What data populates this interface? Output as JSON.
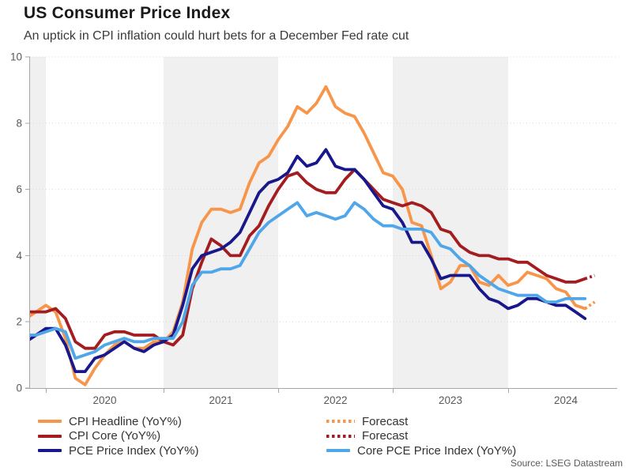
{
  "chart_data": {
    "type": "line",
    "title": "US Consumer Price Index",
    "subtitle": "An uptick in CPI inflation could hurt bets for a December Fed rate cut",
    "source": "Source: LSEG Datastream",
    "unit": "YoY %",
    "frequency": "monthly",
    "x_start_month": "2019-10",
    "x_end_month": "2024-09",
    "forecast_month": "2024-10",
    "x_tick_year_labels": [
      "2020",
      "2021",
      "2022",
      "2023",
      "2024"
    ],
    "y_ticks": [
      0,
      2,
      4,
      6,
      8,
      10
    ],
    "y_range": [
      0,
      10
    ],
    "grid": "horizontal-dotted",
    "legend_position": "bottom",
    "shaded_year_bands": [
      2019,
      2021,
      2023
    ],
    "series": [
      {
        "key": "cpi_headline",
        "name": "CPI Headline (YoY%)",
        "color": "#F7954A",
        "style": "solid",
        "values": [
          1.8,
          2.1,
          2.3,
          2.5,
          2.3,
          1.5,
          0.3,
          0.1,
          0.6,
          1.0,
          1.3,
          1.4,
          1.2,
          1.2,
          1.4,
          1.4,
          1.7,
          2.6,
          4.2,
          5.0,
          5.4,
          5.4,
          5.3,
          5.4,
          6.2,
          6.8,
          7.0,
          7.5,
          7.9,
          8.5,
          8.3,
          8.6,
          9.1,
          8.5,
          8.3,
          8.2,
          7.7,
          7.1,
          6.5,
          6.4,
          6.0,
          5.0,
          4.9,
          4.0,
          3.0,
          3.2,
          3.7,
          3.7,
          3.2,
          3.1,
          3.4,
          3.1,
          3.2,
          3.5,
          3.4,
          3.3,
          3.0,
          2.9,
          2.5,
          2.4
        ],
        "forecast_value": 2.6,
        "forecast_label": "Forecast"
      },
      {
        "key": "cpi_core",
        "name": "CPI Core (YoY%)",
        "color": "#A31D20",
        "style": "solid",
        "values": [
          2.3,
          2.3,
          2.3,
          2.3,
          2.4,
          2.1,
          1.4,
          1.2,
          1.2,
          1.6,
          1.7,
          1.7,
          1.6,
          1.6,
          1.6,
          1.4,
          1.3,
          1.6,
          3.0,
          3.8,
          4.5,
          4.3,
          4.0,
          4.0,
          4.6,
          4.9,
          5.5,
          6.0,
          6.4,
          6.5,
          6.2,
          6.0,
          5.9,
          5.9,
          6.3,
          6.6,
          6.3,
          6.0,
          5.7,
          5.6,
          5.5,
          5.6,
          5.5,
          5.3,
          4.8,
          4.7,
          4.3,
          4.1,
          4.0,
          4.0,
          3.9,
          3.9,
          3.8,
          3.8,
          3.6,
          3.4,
          3.3,
          3.2,
          3.2,
          3.3
        ],
        "forecast_value": 3.4,
        "forecast_label": "Forecast"
      },
      {
        "key": "pce",
        "name": "PCE Price Index (YoY%)",
        "color": "#18188C",
        "style": "solid",
        "values": [
          1.3,
          1.4,
          1.6,
          1.8,
          1.8,
          1.3,
          0.5,
          0.5,
          0.9,
          1.0,
          1.2,
          1.4,
          1.2,
          1.1,
          1.3,
          1.4,
          1.6,
          2.5,
          3.6,
          4.0,
          4.1,
          4.2,
          4.4,
          4.7,
          5.3,
          5.9,
          6.2,
          6.3,
          6.5,
          7.0,
          6.7,
          6.8,
          7.2,
          6.7,
          6.6,
          6.6,
          6.3,
          5.9,
          5.5,
          5.4,
          5.0,
          4.4,
          4.4,
          3.9,
          3.3,
          3.4,
          3.4,
          3.4,
          3.0,
          2.7,
          2.6,
          2.4,
          2.5,
          2.7,
          2.7,
          2.6,
          2.5,
          2.5,
          2.3,
          2.1
        ],
        "forecast_value": null,
        "forecast_label": null
      },
      {
        "key": "core_pce",
        "name": "Core PCE Price Index (YoY%)",
        "color": "#4FA6E8",
        "style": "solid",
        "values": [
          1.7,
          1.6,
          1.6,
          1.7,
          1.8,
          1.7,
          0.9,
          1.0,
          1.1,
          1.3,
          1.4,
          1.5,
          1.4,
          1.4,
          1.5,
          1.5,
          1.5,
          2.0,
          3.1,
          3.5,
          3.5,
          3.6,
          3.6,
          3.7,
          4.2,
          4.7,
          5.0,
          5.2,
          5.4,
          5.6,
          5.2,
          5.3,
          5.2,
          5.1,
          5.2,
          5.6,
          5.4,
          5.1,
          4.9,
          4.9,
          4.8,
          4.8,
          4.8,
          4.7,
          4.3,
          4.2,
          3.9,
          3.7,
          3.4,
          3.2,
          3.0,
          2.9,
          2.8,
          2.8,
          2.8,
          2.6,
          2.6,
          2.7,
          2.7,
          2.7
        ],
        "forecast_value": null,
        "forecast_label": null
      }
    ],
    "legend": {
      "columns": [
        [
          {
            "series": "cpi_headline",
            "swatch": "solid"
          },
          {
            "series": "cpi_core",
            "swatch": "solid"
          },
          {
            "series": "pce",
            "swatch": "solid"
          }
        ],
        [
          {
            "series": "cpi_headline",
            "swatch": "dotted",
            "label": "Forecast"
          },
          {
            "series": "cpi_core",
            "swatch": "dotted",
            "label": "Forecast"
          },
          {
            "series": "core_pce",
            "swatch": "solid"
          }
        ]
      ]
    },
    "colors": {
      "band": "#F0F0F0",
      "grid": "#D6D6D6",
      "axis": "#A6A6A6",
      "tick_label": "#595959"
    }
  }
}
